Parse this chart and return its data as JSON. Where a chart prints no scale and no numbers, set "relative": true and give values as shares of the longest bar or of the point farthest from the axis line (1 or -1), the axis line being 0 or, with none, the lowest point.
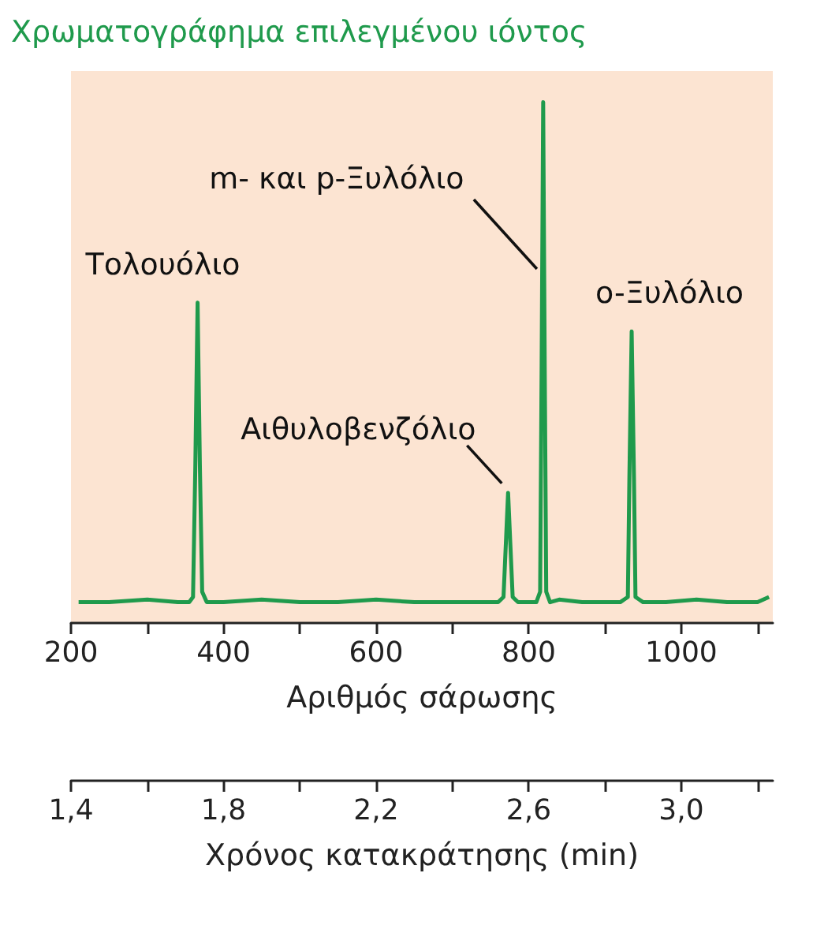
{
  "chart_data": {
    "type": "line",
    "title": "Χρωματογράφημα επιλεγμένου ιόντος",
    "relative": true,
    "xlabel": "Αριθμός σάρωσης",
    "x2label": "Χρόνος κατακράτησης (min)",
    "xlim": [
      200,
      1120
    ],
    "xticks": [
      200,
      {
        "value": 300,
        "label": null
      },
      400,
      {
        "value": 500,
        "label": null
      },
      600,
      {
        "value": 700,
        "label": null
      },
      800,
      {
        "value": 900,
        "label": null
      },
      1000,
      {
        "value": 1100,
        "label": null
      }
    ],
    "x2lim": [
      1.4,
      3.24
    ],
    "x2ticks": [
      {
        "value": 1.4,
        "label": "1,4"
      },
      {
        "value": 1.6,
        "label": null
      },
      {
        "value": 1.8,
        "label": "1,8"
      },
      {
        "value": 2.0,
        "label": null
      },
      {
        "value": 2.2,
        "label": "2,2"
      },
      {
        "value": 2.4,
        "label": null
      },
      {
        "value": 2.6,
        "label": "2,6"
      },
      {
        "value": 2.8,
        "label": null
      },
      {
        "value": 3.0,
        "label": "3,0"
      },
      {
        "value": 3.2,
        "label": null
      }
    ],
    "tick_labels": "x",
    "grid": false,
    "marker": "none",
    "line_style": "solid",
    "series": [
      {
        "color": "#1f9a4c",
        "x": [
          210,
          250,
          300,
          340,
          355,
          360,
          363,
          366,
          369,
          372,
          378,
          400,
          450,
          500,
          550,
          600,
          650,
          700,
          740,
          760,
          767,
          770,
          773,
          776,
          779,
          786,
          800,
          810,
          815,
          817,
          819,
          821,
          823,
          828,
          840,
          870,
          900,
          920,
          930,
          932,
          935,
          938,
          940,
          950,
          980,
          1020,
          1060,
          1100,
          1115
        ],
        "values": [
          0.04,
          0.04,
          0.045,
          0.04,
          0.04,
          0.05,
          0.3,
          0.615,
          0.3,
          0.06,
          0.04,
          0.04,
          0.045,
          0.04,
          0.04,
          0.045,
          0.04,
          0.04,
          0.04,
          0.04,
          0.05,
          0.15,
          0.25,
          0.15,
          0.05,
          0.04,
          0.04,
          0.04,
          0.06,
          0.5,
          1,
          0.5,
          0.06,
          0.04,
          0.045,
          0.04,
          0.04,
          0.04,
          0.05,
          0.28,
          0.56,
          0.28,
          0.05,
          0.04,
          0.04,
          0.045,
          0.04,
          0.04,
          0.05
        ]
      }
    ],
    "annotations": [
      {
        "text": "Τολουόλιο",
        "x": 366,
        "y": 0.615
      },
      {
        "text": "m- και p-Ξυλόλιο",
        "x": 817,
        "y": 0.68
      },
      {
        "text": "Αιθυλοβενζόλιο",
        "x": 773,
        "y": 0.25
      },
      {
        "text": "o-Ξυλόλιο",
        "x": 935,
        "y": 0.56
      }
    ]
  }
}
